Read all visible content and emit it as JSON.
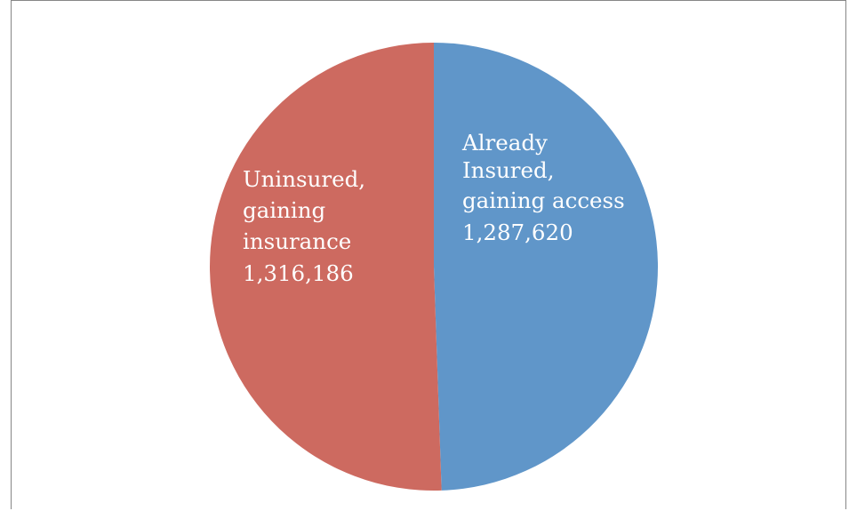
{
  "chart_data": {
    "type": "pie",
    "title": "",
    "slices": [
      {
        "label_lines": [
          "Already",
          "Insured,",
          "gaining access"
        ],
        "value": 1287620,
        "value_text": "1,287,620",
        "color": "#6096C9"
      },
      {
        "label_lines": [
          "Uninsured,",
          "gaining",
          "insurance"
        ],
        "value": 1316186,
        "value_text": "1,316,186",
        "color": "#CD6A60"
      }
    ],
    "start_angle_deg": 0,
    "direction": "clockwise",
    "legend": "none"
  }
}
